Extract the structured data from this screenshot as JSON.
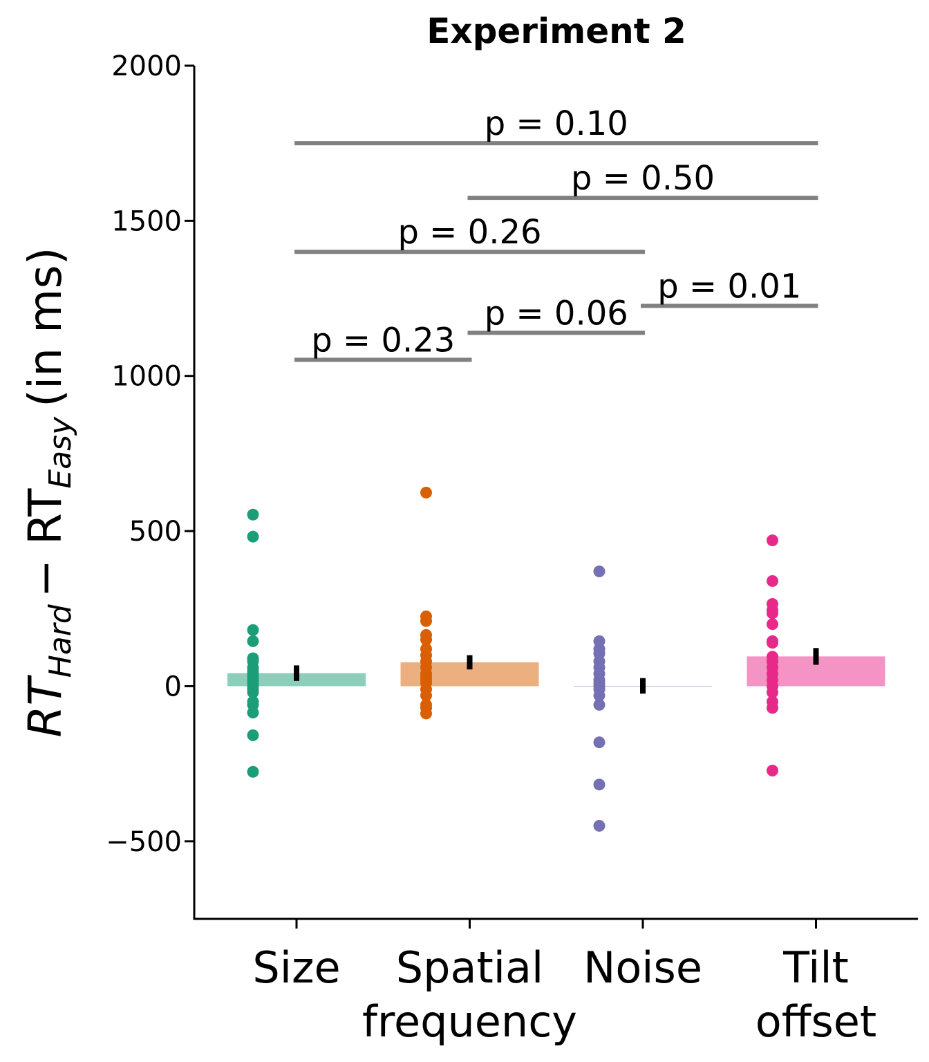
{
  "chart_data": {
    "type": "bar",
    "title": "Experiment 2",
    "y_label": [
      "RT",
      "Hard",
      "− RT",
      "Easy",
      "(in ms)"
    ],
    "categories": [
      [
        "Size"
      ],
      [
        "Spatial",
        "frequency"
      ],
      [
        "Noise"
      ],
      [
        "Tilt",
        "offset"
      ]
    ],
    "colors": [
      "#1b9e77",
      "#d95f02",
      "#7570b3",
      "#e7298a"
    ],
    "values": [
      42,
      77,
      1,
      96
    ],
    "errors": [
      25,
      23,
      25,
      27
    ],
    "points": [
      [
        553,
        482,
        181,
        145,
        90,
        80,
        60,
        50,
        40,
        30,
        20,
        10,
        0,
        -10,
        -20,
        -50,
        -60,
        -85,
        -158,
        -276
      ],
      [
        624,
        225,
        210,
        165,
        150,
        120,
        100,
        80,
        60,
        40,
        30,
        20,
        10,
        -10,
        -30,
        -60,
        -70,
        -88
      ],
      [
        370,
        145,
        120,
        105,
        80,
        60,
        40,
        20,
        10,
        0,
        -10,
        -30,
        -60,
        -181,
        -317,
        -450
      ],
      [
        470,
        339,
        265,
        245,
        235,
        200,
        145,
        140,
        95,
        80,
        60,
        40,
        20,
        0,
        -20,
        -50,
        -70,
        -272
      ]
    ],
    "comparisons": [
      {
        "from": 0,
        "to": 1,
        "y": 1052,
        "label": "p = 0.23"
      },
      {
        "from": 1,
        "to": 2,
        "y": 1139,
        "label": "p = 0.06"
      },
      {
        "from": 2,
        "to": 3,
        "y": 1226,
        "label": "p = 0.01"
      },
      {
        "from": 0,
        "to": 2,
        "y": 1400,
        "label": "p = 0.26"
      },
      {
        "from": 1,
        "to": 3,
        "y": 1574,
        "label": "p = 0.50"
      },
      {
        "from": 0,
        "to": 3,
        "y": 1750,
        "label": "p = 0.10"
      }
    ],
    "ylim": [
      -750,
      2000
    ],
    "yticks": [
      {
        "value": -500,
        "label": "−500"
      },
      0,
      500,
      1000,
      1500,
      2000
    ]
  }
}
